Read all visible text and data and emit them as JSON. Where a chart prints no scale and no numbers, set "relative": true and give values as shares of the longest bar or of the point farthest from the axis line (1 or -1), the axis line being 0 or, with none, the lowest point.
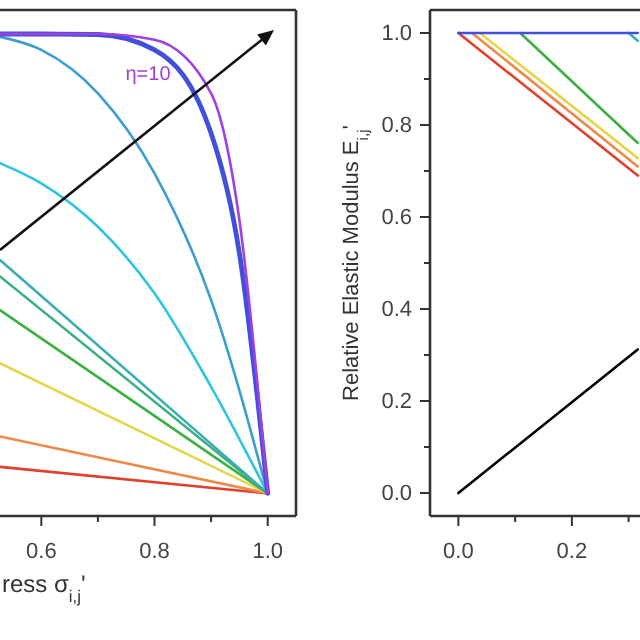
{
  "chart_data": [
    {
      "type": "line",
      "relative": true,
      "xlim": [
        0.527,
        1.05
      ],
      "xticks": [
        0.6,
        {
          "value": 0.7,
          "label": null
        },
        0.8,
        {
          "value": 0.9,
          "label": null
        },
        {
          "value": 1.0,
          "label": "1.0"
        }
      ],
      "xlabel": "ress σ$_{i,j}$'",
      "annotations": [
        "η=10"
      ],
      "series": [
        {
          "color": "#e0402c",
          "x": [
            0.527,
            1.0
          ],
          "values": [
            0.102,
            0.047
          ]
        },
        {
          "color": "#ee8a48",
          "x": [
            0.527,
            1.0
          ],
          "values": [
            0.165,
            0.047
          ]
        },
        {
          "color": "#e4d64c",
          "x": [
            0.527,
            1.0
          ],
          "values": [
            0.317,
            0.047
          ]
        },
        {
          "color": "#3cb040",
          "x": [
            0.527,
            1.0
          ],
          "values": [
            0.427,
            0.047
          ]
        },
        {
          "color": "#3cae84",
          "x": [
            0.527,
            1.0
          ],
          "values": [
            0.497,
            0.047
          ]
        },
        {
          "color": "#3aaeb4",
          "x": [
            0.527,
            1.0
          ],
          "values": [
            0.531,
            0.047
          ]
        },
        {
          "color": "#2ec4e2",
          "x": [
            0.527,
            0.6,
            0.7,
            0.8,
            0.9,
            1.0
          ],
          "values": [
            0.732,
            0.69,
            0.6,
            0.462,
            0.268,
            0.047
          ]
        },
        {
          "color": "#3c9ed0",
          "x": [
            0.527,
            0.6,
            0.7,
            0.8,
            0.9,
            1.0
          ],
          "values": [
            0.994,
            0.967,
            0.877,
            0.711,
            0.448,
            0.047
          ]
        },
        {
          "color": "#4050dc",
          "x": [
            0.527,
            0.6,
            0.7,
            0.8,
            0.9,
            0.95,
            1.0
          ],
          "values": [
            1.0,
            1.0,
            0.999,
            0.967,
            0.794,
            0.545,
            0.047
          ]
        },
        {
          "color": "#a040e0",
          "x": [
            0.527,
            0.6,
            0.7,
            0.8,
            0.9,
            0.95,
            1.0
          ],
          "values": [
            1.0,
            1.0,
            1.0,
            0.988,
            0.877,
            0.614,
            0.047
          ]
        }
      ]
    },
    {
      "type": "line",
      "xlim": [
        -0.05,
        0.32
      ],
      "ylim": [
        -0.05,
        1.05
      ],
      "xticks": [
        {
          "value": 0,
          "label": "0.0"
        },
        {
          "value": 0.1,
          "label": null
        },
        0.2,
        {
          "value": 0.3,
          "label": null
        }
      ],
      "yticks": [
        {
          "value": 0,
          "label": "0.0"
        },
        {
          "value": 0.1,
          "label": null
        },
        0.2,
        {
          "value": 0.3,
          "label": null
        },
        0.4,
        {
          "value": 0.5,
          "label": null
        },
        0.6,
        {
          "value": 0.7,
          "label": null
        },
        0.8,
        {
          "value": 0.9,
          "label": null
        },
        {
          "value": 1,
          "label": "1.0"
        }
      ],
      "ylabel": "Relative Elastic Modulus E$_{i,j}$'",
      "series": [
        {
          "color": "#e0402c",
          "x": [
            0.0,
            0.316
          ],
          "values": [
            1.0,
            0.69
          ]
        },
        {
          "color": "#ee8a48",
          "x": [
            0.024,
            0.316
          ],
          "values": [
            1.0,
            0.71
          ]
        },
        {
          "color": "#e4d64c",
          "x": [
            0.038,
            0.316
          ],
          "values": [
            1.0,
            0.728
          ]
        },
        {
          "color": "#3cb040",
          "x": [
            0.109,
            0.316
          ],
          "values": [
            1.0,
            0.761
          ]
        },
        {
          "color": "#3aaeb4",
          "x": [
            0.3,
            0.316
          ],
          "values": [
            1.0,
            0.983
          ]
        },
        {
          "color": "#4050dc",
          "x": [
            0.0,
            0.316
          ],
          "values": [
            1.0,
            1.0
          ]
        },
        {
          "color": "#000000",
          "x": [
            0.0,
            0.316
          ],
          "values": [
            0.0,
            0.312
          ]
        }
      ]
    }
  ]
}
